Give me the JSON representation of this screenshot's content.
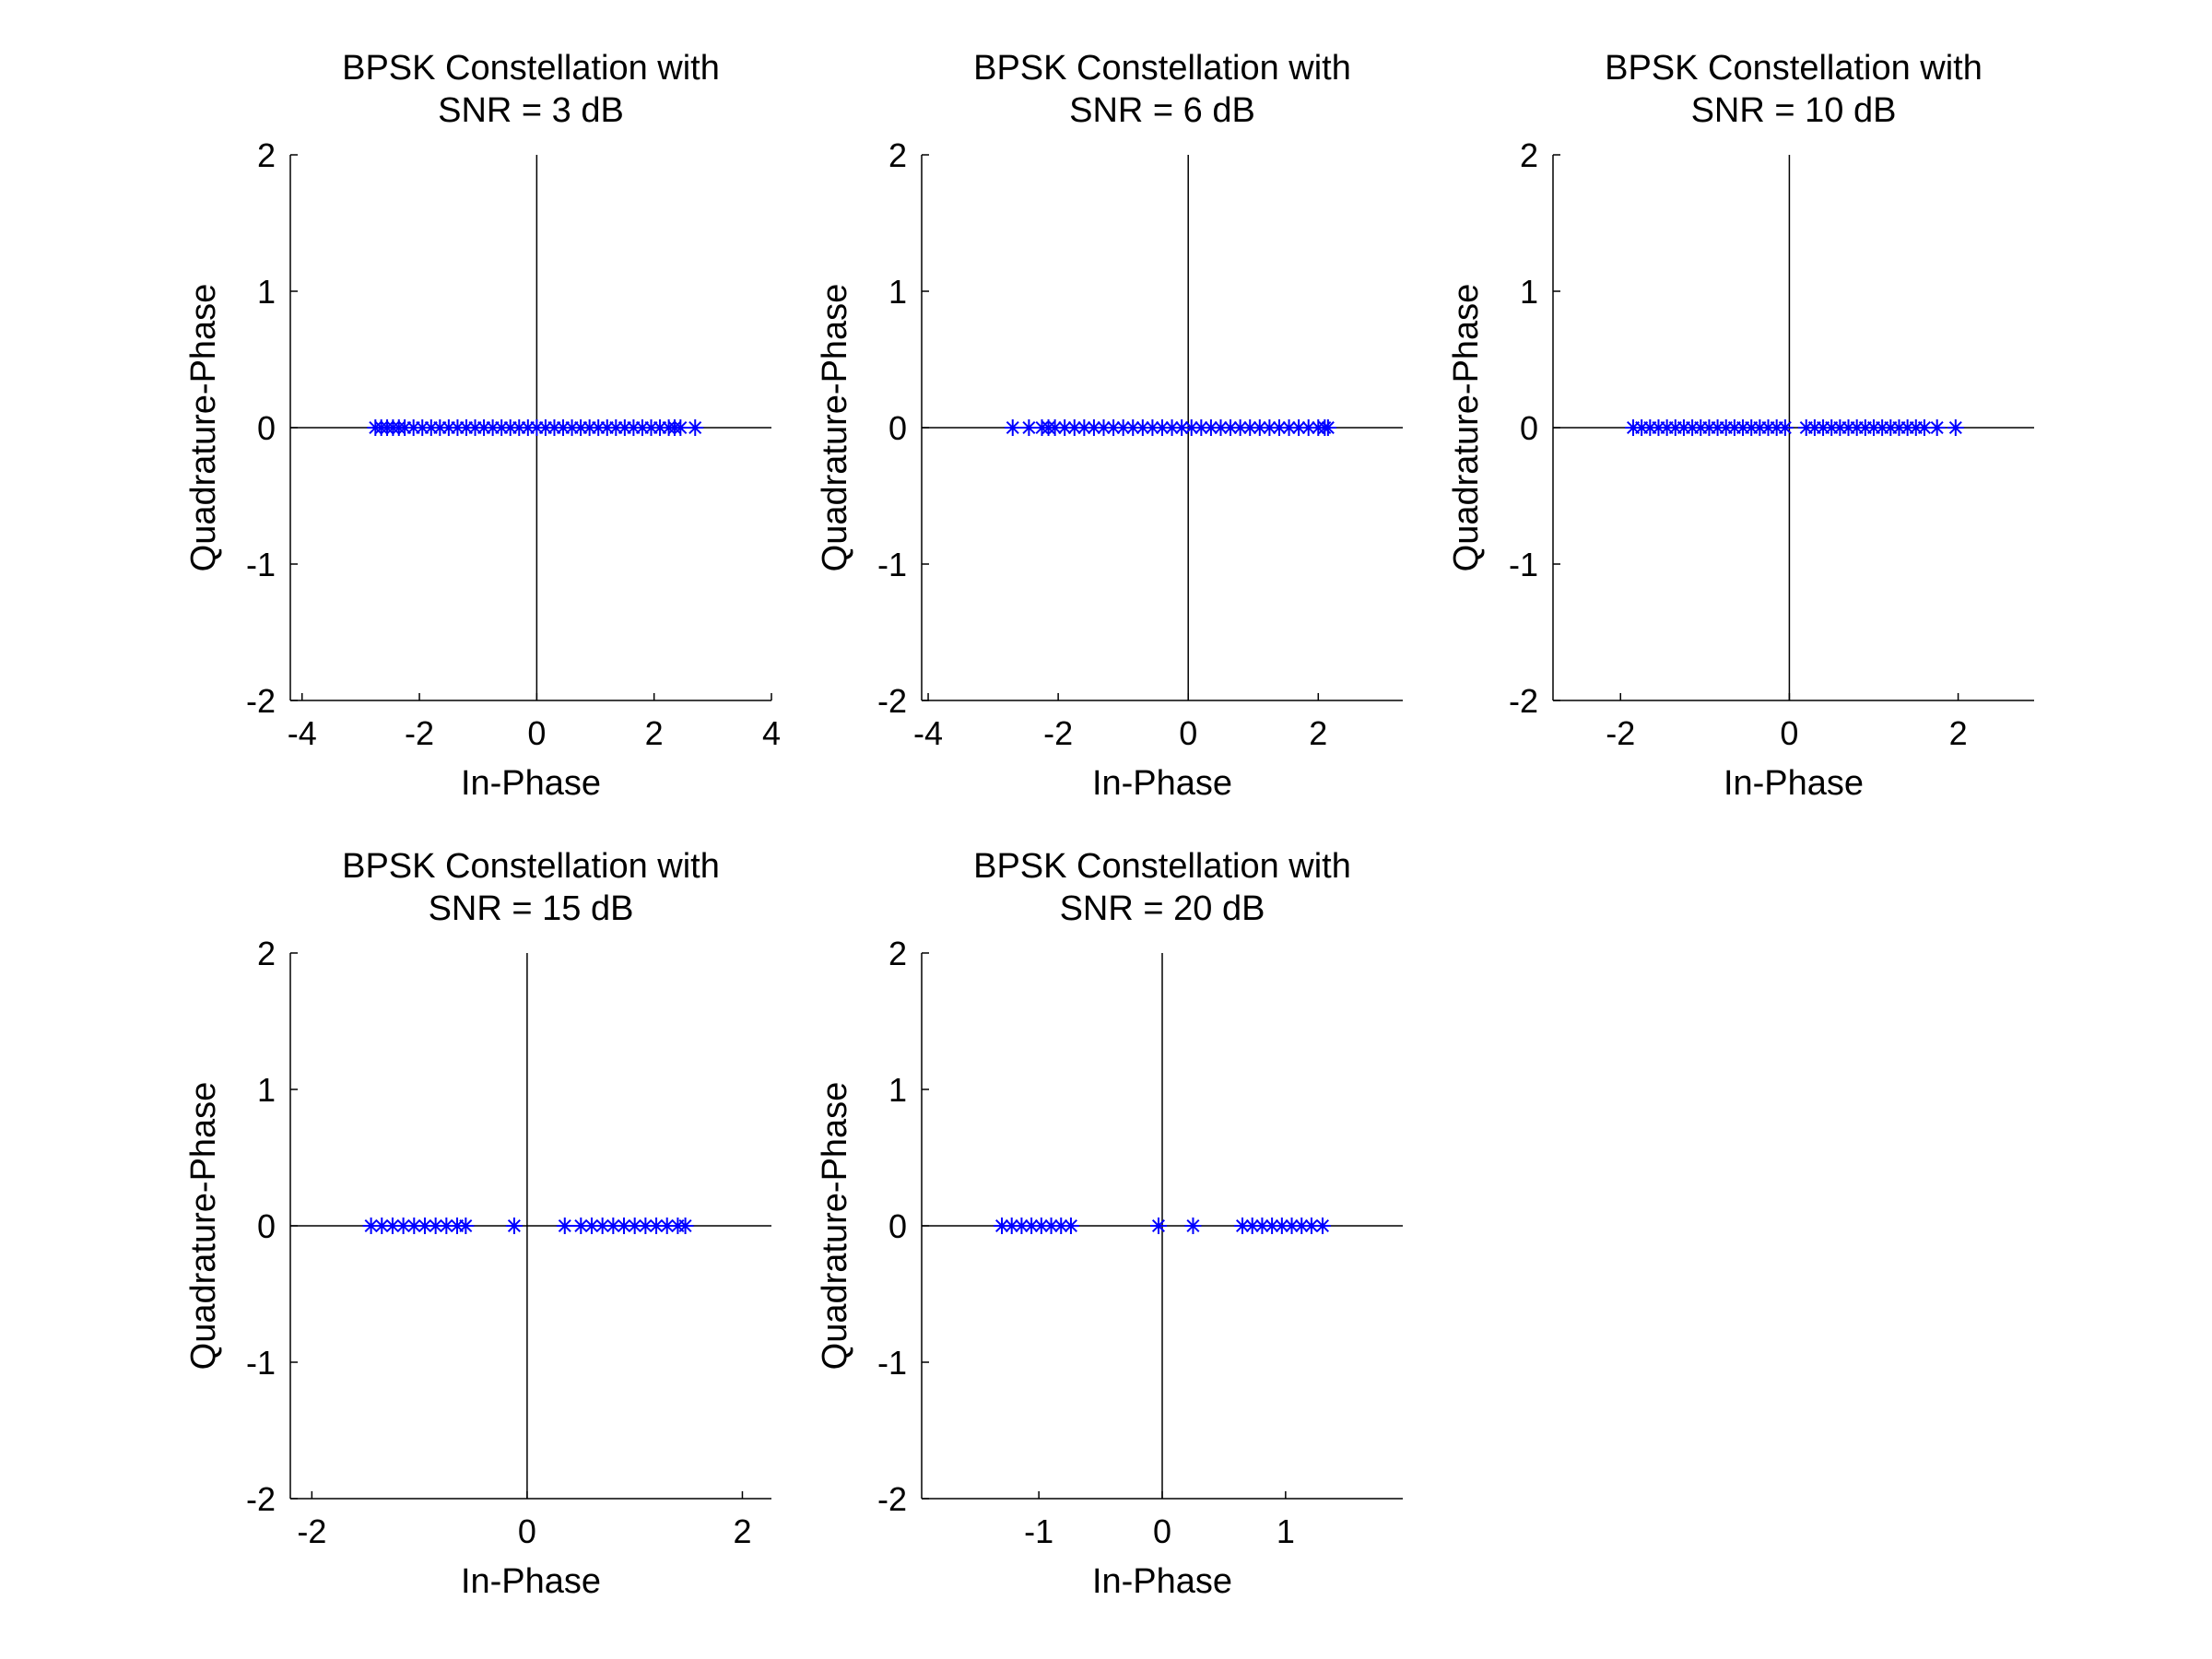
{
  "figure": {
    "background": "#ffffff",
    "marker_color": "#0000ff",
    "axis_color": "#000000",
    "marker": "asterisk"
  },
  "chart_data": [
    {
      "type": "scatter",
      "title": [
        "BPSK Constellation with",
        "SNR = 3 dB"
      ],
      "xlabel": "In-Phase",
      "ylabel": "Quadrature-Phase",
      "xlim": [
        -4.2,
        4.0
      ],
      "ylim": [
        -2,
        2
      ],
      "xticks": [
        -4,
        -2,
        0,
        2,
        4
      ],
      "xtick_labels": [
        "-4",
        "-2",
        "0",
        "2",
        "4"
      ],
      "yticks": [
        -2,
        -1,
        0,
        1,
        2
      ],
      "ytick_labels": [
        "-2",
        "-1",
        "0",
        "1",
        "2"
      ],
      "series": [
        {
          "x": [
            -2.75,
            -2.65,
            -2.55,
            -2.45,
            -2.35,
            -2.25,
            -2.1,
            -1.95,
            -1.8,
            -1.65,
            -1.5,
            -1.35,
            -1.2,
            -1.05,
            -0.9,
            -0.75,
            -0.6,
            -0.45,
            -0.3,
            -0.15,
            0.0,
            0.15,
            0.3,
            0.45,
            0.6,
            0.75,
            0.9,
            1.05,
            1.2,
            1.35,
            1.5,
            1.65,
            1.8,
            1.95,
            2.1,
            2.25,
            2.35,
            2.45,
            2.7
          ],
          "y": [
            0,
            0,
            0,
            0,
            0,
            0,
            0,
            0,
            0,
            0,
            0,
            0,
            0,
            0,
            0,
            0,
            0,
            0,
            0,
            0,
            0,
            0,
            0,
            0,
            0,
            0,
            0,
            0,
            0,
            0,
            0,
            0,
            0,
            0,
            0,
            0,
            0,
            0,
            0
          ]
        }
      ]
    },
    {
      "type": "scatter",
      "title": [
        "BPSK Constellation with",
        "SNR = 6 dB"
      ],
      "xlabel": "In-Phase",
      "ylabel": "Quadrature-Phase",
      "xlim": [
        -4.1,
        3.3
      ],
      "ylim": [
        -2,
        2
      ],
      "xticks": [
        -4,
        -2,
        0,
        2
      ],
      "xtick_labels": [
        "-4",
        "-2",
        "0",
        "2"
      ],
      "yticks": [
        -2,
        -1,
        0,
        1,
        2
      ],
      "ytick_labels": [
        "-2",
        "-1",
        "0",
        "1",
        "2"
      ],
      "series": [
        {
          "x": [
            -2.7,
            -2.45,
            -2.25,
            -2.15,
            -2.05,
            -1.9,
            -1.75,
            -1.6,
            -1.45,
            -1.3,
            -1.15,
            -1.0,
            -0.85,
            -0.7,
            -0.55,
            -0.4,
            -0.25,
            -0.1,
            0.05,
            0.2,
            0.35,
            0.5,
            0.65,
            0.8,
            0.95,
            1.1,
            1.25,
            1.4,
            1.55,
            1.7,
            1.85,
            2.0,
            2.1,
            2.15
          ],
          "y": [
            0,
            0,
            0,
            0,
            0,
            0,
            0,
            0,
            0,
            0,
            0,
            0,
            0,
            0,
            0,
            0,
            0,
            0,
            0,
            0,
            0,
            0,
            0,
            0,
            0,
            0,
            0,
            0,
            0,
            0,
            0,
            0,
            0,
            0
          ]
        }
      ]
    },
    {
      "type": "scatter",
      "title": [
        "BPSK Constellation with",
        "SNR = 10 dB"
      ],
      "xlabel": "In-Phase",
      "ylabel": "Quadrature-Phase",
      "xlim": [
        -2.8,
        2.9
      ],
      "ylim": [
        -2,
        2
      ],
      "xticks": [
        -2,
        0,
        2
      ],
      "xtick_labels": [
        "-2",
        "0",
        "2"
      ],
      "yticks": [
        -2,
        -1,
        0,
        1,
        2
      ],
      "ytick_labels": [
        "-2",
        "-1",
        "0",
        "1",
        "2"
      ],
      "series": [
        {
          "x": [
            -1.85,
            -1.75,
            -1.65,
            -1.55,
            -1.45,
            -1.35,
            -1.25,
            -1.15,
            -1.05,
            -0.95,
            -0.85,
            -0.75,
            -0.65,
            -0.55,
            -0.45,
            -0.35,
            -0.25,
            -0.15,
            -0.05,
            0.2,
            0.3,
            0.4,
            0.5,
            0.6,
            0.7,
            0.8,
            0.9,
            1.0,
            1.1,
            1.2,
            1.3,
            1.4,
            1.5,
            1.6,
            1.75,
            1.97
          ],
          "y": [
            0,
            0,
            0,
            0,
            0,
            0,
            0,
            0,
            0,
            0,
            0,
            0,
            0,
            0,
            0,
            0,
            0,
            0,
            0,
            0,
            0,
            0,
            0,
            0,
            0,
            0,
            0,
            0,
            0,
            0,
            0,
            0,
            0,
            0,
            0,
            0
          ]
        }
      ]
    },
    {
      "type": "scatter",
      "title": [
        "BPSK Constellation with",
        "SNR = 15 dB"
      ],
      "xlabel": "In-Phase",
      "ylabel": "Quadrature-Phase",
      "xlim": [
        -2.2,
        2.27
      ],
      "ylim": [
        -2,
        2
      ],
      "xticks": [
        -2,
        0,
        2
      ],
      "xtick_labels": [
        "-2",
        "0",
        "2"
      ],
      "yticks": [
        -2,
        -1,
        0,
        1,
        2
      ],
      "ytick_labels": [
        "-2",
        "-1",
        "0",
        "1",
        "2"
      ],
      "series": [
        {
          "x": [
            -1.45,
            -1.35,
            -1.25,
            -1.15,
            -1.05,
            -0.95,
            -0.85,
            -0.75,
            -0.65,
            -0.57,
            -0.12,
            0.35,
            0.5,
            0.6,
            0.7,
            0.8,
            0.9,
            1.0,
            1.1,
            1.2,
            1.3,
            1.4,
            1.47
          ],
          "y": [
            0,
            0,
            0,
            0,
            0,
            0,
            0,
            0,
            0,
            0,
            0,
            0,
            0,
            0,
            0,
            0,
            0,
            0,
            0,
            0,
            0,
            0,
            0
          ]
        }
      ]
    },
    {
      "type": "scatter",
      "title": [
        "BPSK Constellation with",
        "SNR = 20 dB"
      ],
      "xlabel": "In-Phase",
      "ylabel": "Quadrature-Phase",
      "xlim": [
        -1.95,
        1.95
      ],
      "ylim": [
        -2,
        2
      ],
      "xticks": [
        -1,
        0,
        1
      ],
      "xtick_labels": [
        "-1",
        "0",
        "1"
      ],
      "yticks": [
        -2,
        -1,
        0,
        1,
        2
      ],
      "ytick_labels": [
        "-2",
        "-1",
        "0",
        "1",
        "2"
      ],
      "series": [
        {
          "x": [
            -1.3,
            -1.22,
            -1.14,
            -1.06,
            -0.98,
            -0.9,
            -0.82,
            -0.74,
            -0.03,
            0.25,
            0.65,
            0.73,
            0.81,
            0.89,
            0.97,
            1.05,
            1.13,
            1.21,
            1.3
          ],
          "y": [
            0,
            0,
            0,
            0,
            0,
            0,
            0,
            0,
            0,
            0,
            0,
            0,
            0,
            0,
            0,
            0,
            0,
            0,
            0
          ]
        }
      ]
    }
  ]
}
